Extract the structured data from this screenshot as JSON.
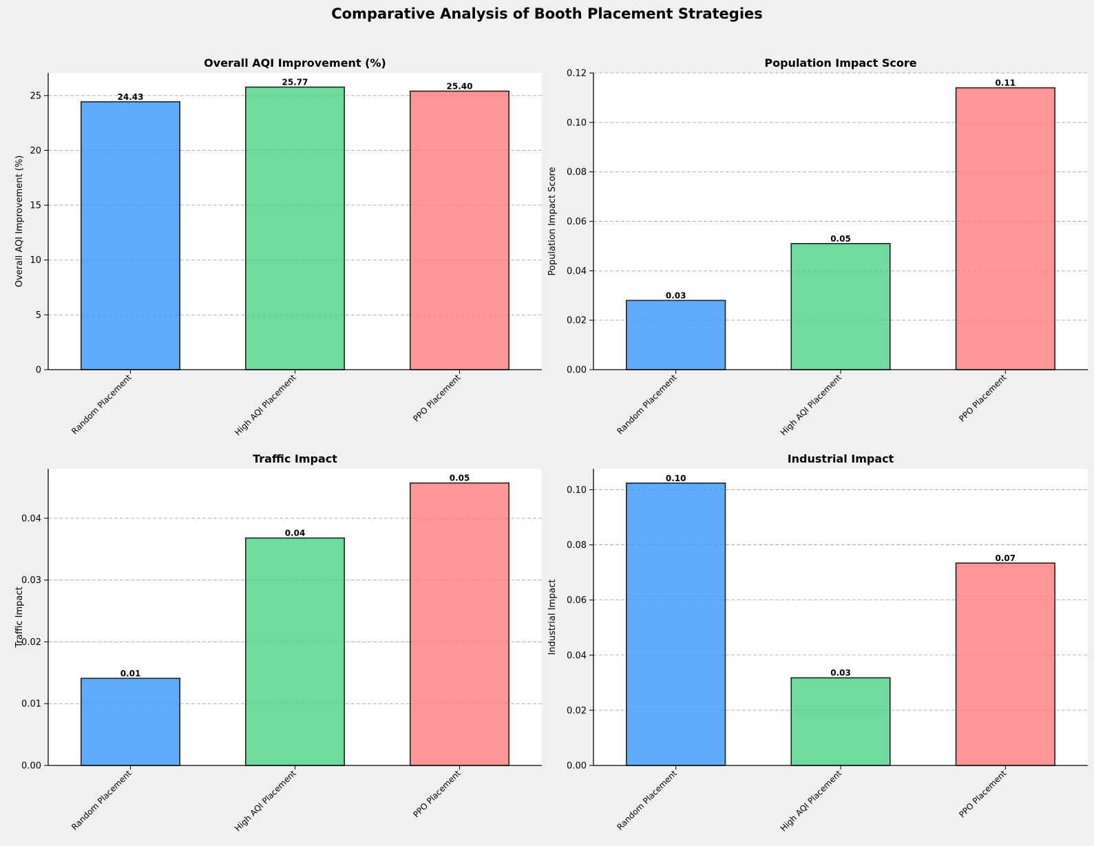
{
  "figure_title": "Comparative Analysis of Booth Placement Strategies",
  "colors": {
    "background": "#f0f0f0",
    "bars": [
      "#3a96ff",
      "#4bd184",
      "#ff7b7b"
    ]
  },
  "chart_data": [
    {
      "type": "bar",
      "title": "Overall AQI Improvement (%)",
      "xlabel": "",
      "ylabel": "Overall AQI Improvement (%)",
      "categories": [
        "Random Placement",
        "High AQI Placement",
        "PPO Placement"
      ],
      "values": [
        24.43,
        25.77,
        25.4
      ],
      "value_labels": [
        "24.43",
        "25.77",
        "25.40"
      ],
      "ylim": [
        0,
        27.06
      ],
      "yticks": [
        0,
        5,
        10,
        15,
        20,
        25
      ],
      "ytick_labels": [
        "0",
        "5",
        "10",
        "15",
        "20",
        "25"
      ],
      "grid": "y"
    },
    {
      "type": "bar",
      "title": "Population Impact Score",
      "xlabel": "",
      "ylabel": "Population Impact Score",
      "categories": [
        "Random Placement",
        "High AQI Placement",
        "PPO Placement"
      ],
      "values": [
        0.028,
        0.051,
        0.114
      ],
      "value_labels": [
        "0.03",
        "0.05",
        "0.11"
      ],
      "ylim": [
        0,
        0.12
      ],
      "yticks": [
        0,
        0.02,
        0.04,
        0.06,
        0.08,
        0.1,
        0.12
      ],
      "ytick_labels": [
        "0.00",
        "0.02",
        "0.04",
        "0.06",
        "0.08",
        "0.10",
        "0.12"
      ],
      "grid": "y"
    },
    {
      "type": "bar",
      "title": "Traffic Impact",
      "xlabel": "",
      "ylabel": "Traffic Impact",
      "categories": [
        "Random Placement",
        "High AQI Placement",
        "PPO Placement"
      ],
      "values": [
        0.0141,
        0.0368,
        0.0457
      ],
      "value_labels": [
        "0.01",
        "0.04",
        "0.05"
      ],
      "ylim": [
        0,
        0.048
      ],
      "yticks": [
        0,
        0.01,
        0.02,
        0.03,
        0.04
      ],
      "ytick_labels": [
        "0.00",
        "0.01",
        "0.02",
        "0.03",
        "0.04"
      ],
      "grid": "y"
    },
    {
      "type": "bar",
      "title": "Industrial Impact",
      "xlabel": "",
      "ylabel": "Industrial Impact",
      "categories": [
        "Random Placement",
        "High AQI Placement",
        "PPO Placement"
      ],
      "values": [
        0.1024,
        0.0318,
        0.0734
      ],
      "value_labels": [
        "0.10",
        "0.03",
        "0.07"
      ],
      "ylim": [
        0,
        0.1076
      ],
      "yticks": [
        0,
        0.02,
        0.04,
        0.06,
        0.08,
        0.1
      ],
      "ytick_labels": [
        "0.00",
        "0.02",
        "0.04",
        "0.06",
        "0.08",
        "0.10"
      ],
      "grid": "y"
    }
  ]
}
